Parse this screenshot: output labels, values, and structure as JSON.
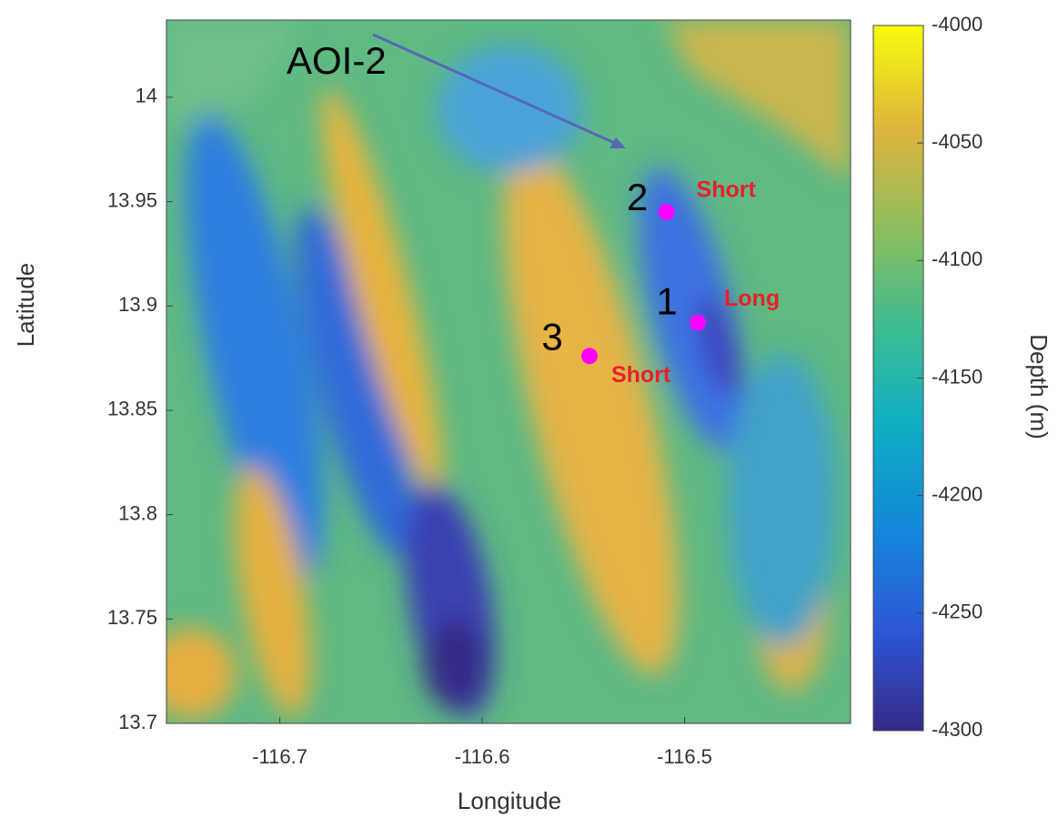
{
  "chart_data": {
    "type": "scatter",
    "xlabel": "Longitude",
    "ylabel": "Latitude",
    "xlim": [
      -116.756,
      -116.418
    ],
    "ylim": [
      13.7,
      14.037
    ],
    "xticks": [
      -116.7,
      -116.6,
      -116.5
    ],
    "yticks": [
      13.7,
      13.75,
      13.8,
      13.85,
      13.9,
      13.95,
      14
    ],
    "x": [
      -116.509,
      -116.4935,
      -116.547
    ],
    "y": [
      13.945,
      13.892,
      13.876
    ],
    "point_labels": [
      "2",
      "1",
      "3"
    ],
    "point_notes": [
      "Short",
      "Long",
      "Short"
    ],
    "color": "#ff00ff",
    "annotation": "AOI-2",
    "colorbar": {
      "label": "Depth (m)",
      "lim": [
        -4300,
        -4000
      ],
      "ticks": [
        -4300,
        -4250,
        -4200,
        -4150,
        -4100,
        -4050,
        -4000
      ]
    }
  }
}
